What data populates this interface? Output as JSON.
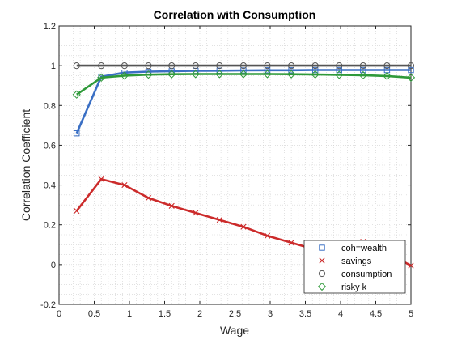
{
  "chart_data": {
    "type": "line",
    "title": "Correlation with Consumption",
    "xlabel": "Wage",
    "ylabel": "Correlation Coefficient",
    "xlim": [
      0,
      5
    ],
    "ylim": [
      -0.2,
      1.2
    ],
    "xticks": [
      0,
      0.5,
      1,
      1.5,
      2,
      2.5,
      3,
      3.5,
      4,
      4.5,
      5
    ],
    "xtick_labels": [
      "0",
      "0.5",
      "1",
      "1.5",
      "2",
      "2.5",
      "3",
      "3.5",
      "4",
      "4.5",
      "5"
    ],
    "yticks": [
      -0.2,
      0,
      0.2,
      0.4,
      0.6,
      0.8,
      1,
      1.2
    ],
    "ytick_labels": [
      "-0.2",
      "0",
      "0.2",
      "0.4",
      "0.6",
      "0.8",
      "1",
      "1.2"
    ],
    "grid": "minor-dotted",
    "legend_position": "bottom-right",
    "x": [
      0.25,
      0.6,
      0.93,
      1.27,
      1.6,
      1.94,
      2.28,
      2.62,
      2.96,
      3.3,
      3.64,
      3.98,
      4.32,
      4.66,
      5.0
    ],
    "series": [
      {
        "name": "coh=wealth",
        "color": "#3a6fc4",
        "marker": "square",
        "values": [
          0.66,
          0.945,
          0.965,
          0.97,
          0.972,
          0.974,
          0.975,
          0.976,
          0.977,
          0.977,
          0.978,
          0.978,
          0.978,
          0.978,
          0.978
        ]
      },
      {
        "name": "savings",
        "color": "#cc2b2b",
        "marker": "x",
        "values": [
          0.27,
          0.43,
          0.4,
          0.335,
          0.295,
          0.26,
          0.225,
          0.19,
          0.145,
          0.11,
          0.075,
          0.1,
          0.115,
          0.06,
          -0.005
        ]
      },
      {
        "name": "consumption",
        "color": "#555555",
        "marker": "circle",
        "values": [
          1,
          1,
          1,
          1,
          1,
          1,
          1,
          1,
          1,
          1,
          1,
          1,
          1,
          1,
          1
        ]
      },
      {
        "name": "risky k",
        "color": "#2f9a3a",
        "marker": "diamond",
        "values": [
          0.855,
          0.94,
          0.95,
          0.955,
          0.957,
          0.958,
          0.958,
          0.958,
          0.958,
          0.957,
          0.956,
          0.954,
          0.952,
          0.948,
          0.94
        ]
      }
    ]
  }
}
